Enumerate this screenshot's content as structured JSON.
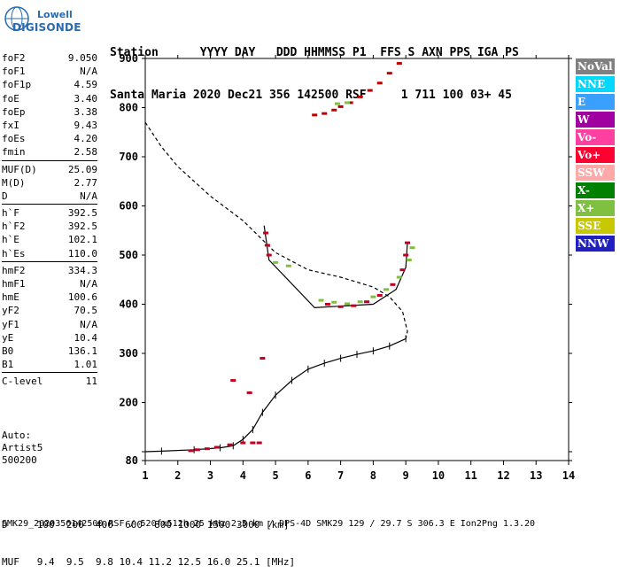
{
  "logo": {
    "line1": "Lowell",
    "line2": "DIGISONDE"
  },
  "header": {
    "labels": "Station      YYYY DAY   DDD HHMMSS P1  FFS S AXN PPS IGA PS",
    "values": "Santa Maria 2020 Dec21 356 142500 RSF     1 711 100 03+ 45"
  },
  "params": [
    [
      {
        "name": "foF2",
        "value": "9.050"
      },
      {
        "name": "foF1",
        "value": "N/A"
      },
      {
        "name": "foF1p",
        "value": "4.59"
      },
      {
        "name": "foE",
        "value": "3.40"
      },
      {
        "name": "foEp",
        "value": "3.38"
      },
      {
        "name": "fxI",
        "value": "9.43"
      },
      {
        "name": "foEs",
        "value": "4.20"
      },
      {
        "name": "fmin",
        "value": "2.58"
      }
    ],
    [
      {
        "name": "MUF(D)",
        "value": "25.09"
      },
      {
        "name": "M(D)",
        "value": "2.77"
      },
      {
        "name": "D",
        "value": "N/A"
      }
    ],
    [
      {
        "name": "h`F",
        "value": "392.5"
      },
      {
        "name": "h`F2",
        "value": "392.5"
      },
      {
        "name": "h`E",
        "value": "102.1"
      },
      {
        "name": "h`Es",
        "value": "110.0"
      }
    ],
    [
      {
        "name": "hmF2",
        "value": "334.3"
      },
      {
        "name": "hmF1",
        "value": "N/A"
      },
      {
        "name": "hmE",
        "value": "100.6"
      },
      {
        "name": "yF2",
        "value": "70.5"
      },
      {
        "name": "yF1",
        "value": "N/A"
      },
      {
        "name": "yE",
        "value": "10.4"
      },
      {
        "name": "B0",
        "value": "136.1"
      },
      {
        "name": "B1",
        "value": "1.01"
      }
    ],
    [
      {
        "name": "C-level",
        "value": "11"
      }
    ]
  ],
  "auto": {
    "line1": "Auto:",
    "line2": "Artist5",
    "line3": "500200"
  },
  "legend": [
    {
      "label": "NoVal",
      "color": "#808080"
    },
    {
      "label": "NNE",
      "color": "#00d8ff"
    },
    {
      "label": "E",
      "color": "#3aa0ff"
    },
    {
      "label": "W",
      "color": "#a000a0"
    },
    {
      "label": "Vo-",
      "color": "#ff40a0"
    },
    {
      "label": "Vo+",
      "color": "#ff0030"
    },
    {
      "label": "SSW",
      "color": "#ffa8a8"
    },
    {
      "label": "X-",
      "color": "#008000"
    },
    {
      "label": "X+",
      "color": "#80c040"
    },
    {
      "label": "SSE",
      "color": "#c8c800"
    },
    {
      "label": "NNW",
      "color": "#2020c0"
    }
  ],
  "bottom": {
    "line1": "D     100  200  400  600  800 1000 1500 3000 [km]",
    "line2": "MUF   9.4  9.5  9.8 10.4 11.2 12.5 16.0 25.1 [MHz]"
  },
  "footer": "SMK29_2020356142500.RSF / 520fx512h 25 kHz 2.5 km / DPS-4D SMK29 129 / 29.7 S 306.3 E Ion2Png 1.3.20",
  "chart_data": {
    "type": "scatter",
    "xlim": [
      1,
      14
    ],
    "ylim": [
      80,
      900
    ],
    "x_ticks": [
      1,
      2,
      3,
      4,
      5,
      6,
      7,
      8,
      9,
      10,
      11,
      12,
      13,
      14
    ],
    "y_ticks": [
      80,
      100,
      200,
      300,
      400,
      500,
      600,
      700,
      800,
      900
    ],
    "series": [
      {
        "style": "dashed",
        "color": "#000000",
        "points": [
          [
            1,
            770
          ],
          [
            1.5,
            720
          ],
          [
            2,
            680
          ],
          [
            3,
            620
          ],
          [
            4,
            570
          ],
          [
            5,
            505
          ],
          [
            6,
            470
          ],
          [
            7,
            455
          ],
          [
            8,
            435
          ],
          [
            8.5,
            415
          ],
          [
            8.9,
            385
          ],
          [
            9.05,
            345
          ],
          [
            9.0,
            330
          ]
        ]
      },
      {
        "style": "solid",
        "color": "#000000",
        "points": [
          [
            9.0,
            330
          ],
          [
            8.5,
            315
          ],
          [
            8,
            305
          ],
          [
            7.5,
            298
          ],
          [
            7,
            290
          ],
          [
            6.5,
            280
          ],
          [
            6,
            268
          ],
          [
            5.5,
            245
          ],
          [
            5,
            215
          ],
          [
            4.6,
            180
          ],
          [
            4.3,
            145
          ],
          [
            4,
            125
          ],
          [
            3.7,
            112
          ],
          [
            3.3,
            108
          ],
          [
            2.5,
            104
          ],
          [
            1.5,
            101
          ],
          [
            1,
            100
          ]
        ]
      },
      {
        "style": "solid",
        "color": "#000000",
        "points": [
          [
            4.65,
            560
          ],
          [
            4.8,
            490
          ],
          [
            6.2,
            393
          ],
          [
            8,
            400
          ],
          [
            8.7,
            430
          ],
          [
            9.0,
            475
          ],
          [
            9.05,
            525
          ]
        ]
      },
      {
        "style": "echo",
        "color": "#c00000",
        "points": [
          [
            6.2,
            785
          ],
          [
            6.5,
            788
          ],
          [
            6.8,
            795
          ],
          [
            7.0,
            802
          ],
          [
            7.3,
            810
          ],
          [
            7.6,
            822
          ],
          [
            7.9,
            835
          ],
          [
            8.2,
            850
          ],
          [
            8.5,
            870
          ],
          [
            8.8,
            890
          ]
        ]
      },
      {
        "style": "echo",
        "color": "#80c040",
        "points": [
          [
            6.9,
            808
          ],
          [
            7.2,
            810
          ],
          [
            6.4,
            408
          ],
          [
            6.8,
            404
          ],
          [
            7.2,
            401
          ],
          [
            7.6,
            405
          ],
          [
            8.0,
            415
          ],
          [
            8.4,
            430
          ],
          [
            8.8,
            455
          ],
          [
            9.1,
            490
          ],
          [
            9.2,
            515
          ],
          [
            5.0,
            485
          ],
          [
            5.4,
            478
          ]
        ]
      },
      {
        "style": "echo",
        "color": "#c00020",
        "points": [
          [
            4.7,
            545
          ],
          [
            4.75,
            520
          ],
          [
            4.8,
            500
          ],
          [
            6.6,
            400
          ],
          [
            7.0,
            395
          ],
          [
            7.4,
            397
          ],
          [
            7.8,
            405
          ],
          [
            8.2,
            418
          ],
          [
            8.6,
            440
          ],
          [
            8.9,
            470
          ],
          [
            9.0,
            500
          ],
          [
            9.05,
            525
          ]
        ]
      },
      {
        "style": "echo",
        "color": "#c00020",
        "points": [
          [
            2.4,
            102
          ],
          [
            2.6,
            104
          ],
          [
            2.9,
            106
          ],
          [
            3.2,
            109
          ],
          [
            3.6,
            114
          ],
          [
            4.0,
            118
          ],
          [
            4.3,
            118
          ],
          [
            4.5,
            118
          ],
          [
            4.2,
            220
          ],
          [
            4.6,
            290
          ],
          [
            3.7,
            245
          ]
        ]
      }
    ]
  }
}
